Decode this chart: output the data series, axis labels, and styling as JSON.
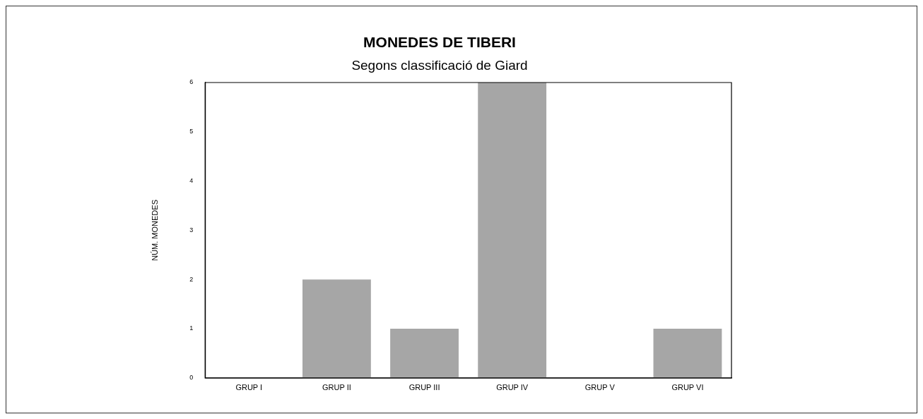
{
  "chart_data": {
    "type": "bar",
    "title": "MONEDES DE TIBERI",
    "subtitle": "Segons classificació de Giard",
    "ylabel": "NÚM. MONEDES",
    "categories": [
      "GRUP I",
      "GRUP II",
      "GRUP III",
      "GRUP IV",
      "GRUP V",
      "GRUP VI"
    ],
    "values": [
      0,
      2,
      1,
      6,
      0,
      1
    ],
    "color": "#a6a6a6",
    "ylim": [
      0,
      6
    ],
    "yticks": [
      0,
      1,
      2,
      3,
      4,
      5,
      6
    ],
    "grid": false
  }
}
